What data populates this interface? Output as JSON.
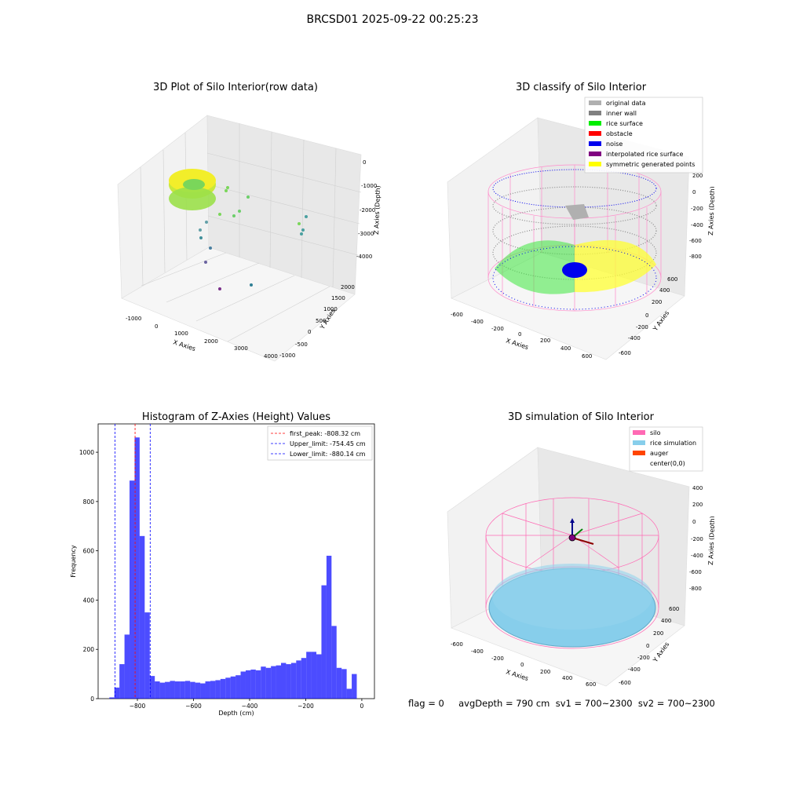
{
  "suptitle": "BRCSD01 2025-09-22 00:25:23",
  "panels": {
    "raw": {
      "title": "3D Plot of Silo Interior(row data)",
      "xlabel": "X Axies",
      "ylabel": "Y Axies",
      "zlabel": "Z Axies (Depth)",
      "xticks": [
        "-1000",
        "0",
        "1000",
        "2000",
        "3000",
        "4000"
      ],
      "yticks": [
        "-1000",
        "-500",
        "0",
        "500",
        "1000",
        "1500",
        "2000"
      ],
      "zticks": [
        "0",
        "-1000",
        "-2000",
        "-3000",
        "-4000"
      ]
    },
    "classify": {
      "title": "3D classify of Silo Interior",
      "xlabel": "X Axies",
      "ylabel": "Y Axies",
      "zlabel": "Z Axies (Depth)",
      "xticks": [
        "-600",
        "-400",
        "-200",
        "0",
        "200",
        "400",
        "600"
      ],
      "yticks": [
        "-600",
        "-400",
        "-200",
        "0",
        "200",
        "400",
        "600"
      ],
      "zticks": [
        "200",
        "0",
        "-200",
        "-400",
        "-600",
        "-800"
      ],
      "legend": [
        {
          "label": "original data",
          "color": "#b0b0b0"
        },
        {
          "label": "inner wall",
          "color": "#808080"
        },
        {
          "label": "rice surface",
          "color": "#00ee00"
        },
        {
          "label": "obstacle",
          "color": "#ff0000"
        },
        {
          "label": "noise",
          "color": "#0000ee"
        },
        {
          "label": "interpolated rice surface",
          "color": "#800080"
        },
        {
          "label": "symmetric generated points",
          "color": "#ffff00"
        }
      ]
    },
    "sim": {
      "title": "3D simulation of Silo Interior",
      "xlabel": "X Axies",
      "ylabel": "Y Axies",
      "zlabel": "Z Axies (Depth)",
      "xticks": [
        "-600",
        "-400",
        "-200",
        "0",
        "200",
        "400",
        "600"
      ],
      "yticks": [
        "-600",
        "-400",
        "-200",
        "0",
        "200",
        "400",
        "600"
      ],
      "zticks": [
        "400",
        "200",
        "0",
        "-200",
        "-400",
        "-600",
        "-800"
      ],
      "legend": [
        {
          "label": "silo",
          "color": "#ff69b4"
        },
        {
          "label": "rice simulation",
          "color": "#87ceeb"
        },
        {
          "label": "auger",
          "color": "#ff4500"
        },
        {
          "label": "center(0,0)",
          "color": ""
        }
      ]
    },
    "footer": {
      "text": "flag = 0     avgDepth = 790 cm  sv1 = 700~2300  sv2 = 700~2300"
    }
  },
  "chart_data": {
    "type": "bar",
    "title": "Histogram of Z-Axies (Height) Values",
    "xlabel": "Depth (cm)",
    "ylabel": "Frequency",
    "xlim": [
      -940,
      45
    ],
    "ylim": [
      0,
      1115
    ],
    "xticks": [
      -800,
      -600,
      -400,
      -200,
      0
    ],
    "yticks": [
      0,
      200,
      400,
      600,
      800,
      1000
    ],
    "bar_color": "#0000ff",
    "bin_edges": [
      -900,
      -882,
      -864,
      -846,
      -828,
      -810,
      -792,
      -774,
      -756,
      -738,
      -720,
      -702,
      -684,
      -666,
      -648,
      -630,
      -612,
      -594,
      -576,
      -558,
      -540,
      -522,
      -504,
      -486,
      -468,
      -450,
      -432,
      -414,
      -396,
      -378,
      -360,
      -342,
      -324,
      -306,
      -288,
      -270,
      -252,
      -234,
      -216,
      -198,
      -180,
      -162,
      -144,
      -126,
      -108,
      -90,
      -72,
      -54,
      -36,
      -18,
      0
    ],
    "values": [
      5,
      45,
      140,
      260,
      885,
      1060,
      660,
      350,
      92,
      70,
      65,
      68,
      72,
      70,
      70,
      72,
      68,
      65,
      62,
      70,
      72,
      75,
      80,
      85,
      90,
      95,
      110,
      115,
      118,
      115,
      130,
      125,
      132,
      135,
      145,
      140,
      145,
      155,
      165,
      190,
      190,
      180,
      460,
      580,
      295,
      125,
      120,
      40,
      100,
      0
    ],
    "lines": [
      {
        "label": "first_peak: -808.32 cm",
        "value": -808.32,
        "color": "#ff0000"
      },
      {
        "label": "Upper_limit: -754.45 cm",
        "value": -754.45,
        "color": "#0000ff"
      },
      {
        "label": "Lower_limit: -880.14 cm",
        "value": -880.14,
        "color": "#0000ff"
      }
    ],
    "legend_position": "top-right"
  }
}
